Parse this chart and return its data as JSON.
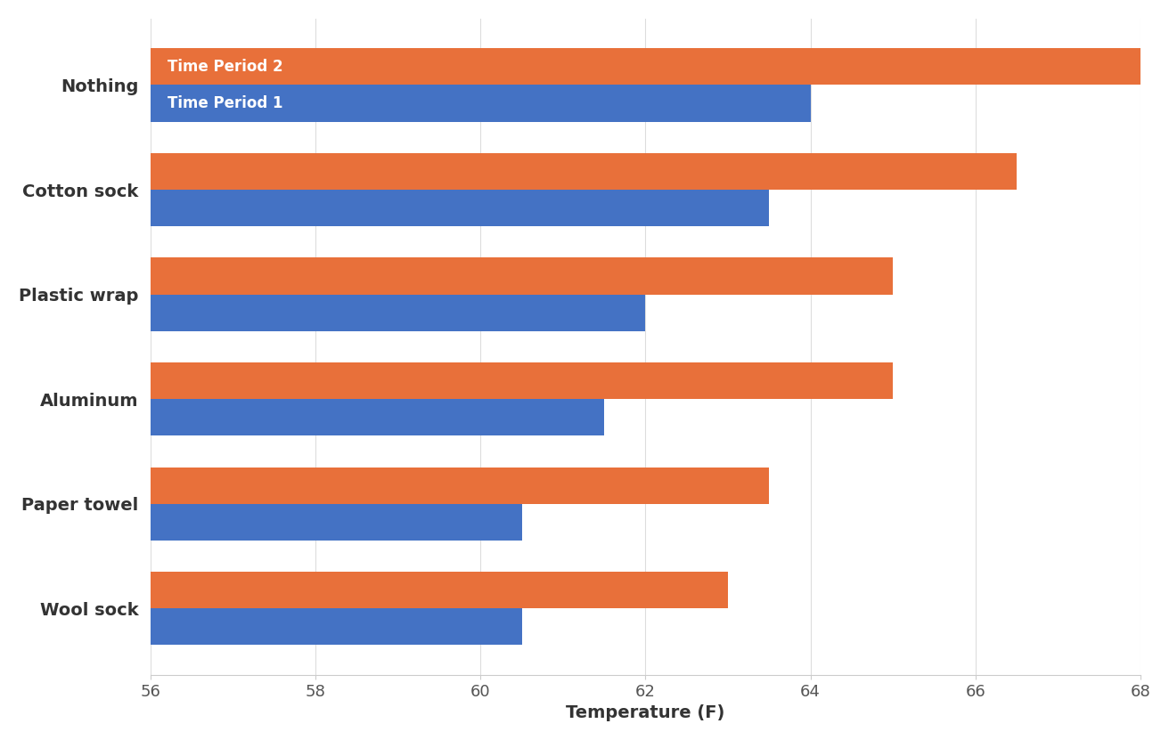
{
  "categories": [
    "Nothing",
    "Cotton sock",
    "Plastic wrap",
    "Aluminum",
    "Paper towel",
    "Wool sock"
  ],
  "time_period_1": [
    64.0,
    63.5,
    62.0,
    61.5,
    60.5,
    60.5
  ],
  "time_period_2": [
    69.0,
    66.5,
    65.0,
    65.0,
    63.5,
    63.0
  ],
  "color_period_1": "#4472C4",
  "color_period_2": "#E8703A",
  "legend_label_1": "Time Period 1",
  "legend_label_2": "Time Period 2",
  "xlabel": "Temperature (F)",
  "xlim": [
    56,
    68
  ],
  "xticks": [
    56,
    58,
    60,
    62,
    64,
    66,
    68
  ],
  "bar_height": 0.35,
  "background_color": "#FFFFFF",
  "tick_fontsize": 13,
  "label_fontsize": 14,
  "legend_fontsize": 12,
  "category_fontsize": 14
}
